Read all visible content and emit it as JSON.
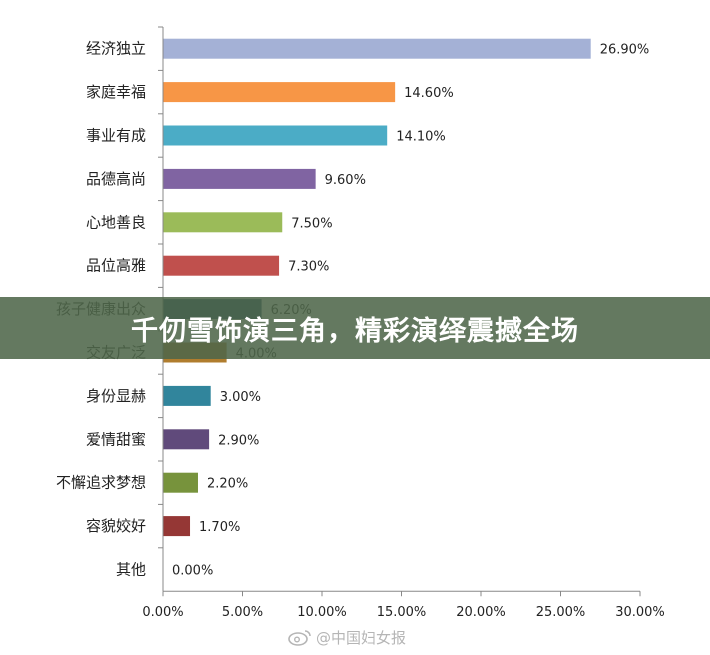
{
  "overlay": {
    "banner_text": "千仞雪饰演三角，精彩演绎震撼全场",
    "watermark_text": "@中国妇女报"
  },
  "chart_data": {
    "type": "bar",
    "orientation": "horizontal",
    "categories": [
      "经济独立",
      "家庭幸福",
      "事业有成",
      "品德高尚",
      "心地善良",
      "品位高雅",
      "孩子健康出众",
      "交友广泛",
      "身份显赫",
      "爱情甜蜜",
      "不懈追求梦想",
      "容貌姣好",
      "其他"
    ],
    "values": [
      26.9,
      14.6,
      14.1,
      9.6,
      7.5,
      7.3,
      6.2,
      4.0,
      3.0,
      2.9,
      2.2,
      1.7,
      0.0
    ],
    "value_labels": [
      "26.90%",
      "14.60%",
      "14.10%",
      "9.60%",
      "7.50%",
      "7.30%",
      "6.20%",
      "4.00%",
      "3.00%",
      "2.90%",
      "2.20%",
      "1.70%",
      "0.00%"
    ],
    "colors": [
      "#a4b1d6",
      "#f79646",
      "#4bacc6",
      "#8064a2",
      "#9bbb59",
      "#c0504d",
      "#1f4e6b",
      "#b07d2e",
      "#31859c",
      "#604a7b",
      "#77933c",
      "#953735",
      "#888888"
    ],
    "x_ticks": [
      "0.00%",
      "5.00%",
      "10.00%",
      "15.00%",
      "20.00%",
      "25.00%",
      "30.00%"
    ],
    "xlim": [
      0,
      30
    ],
    "title": "",
    "xlabel": "",
    "ylabel": "",
    "grid": false,
    "legend": "none"
  }
}
